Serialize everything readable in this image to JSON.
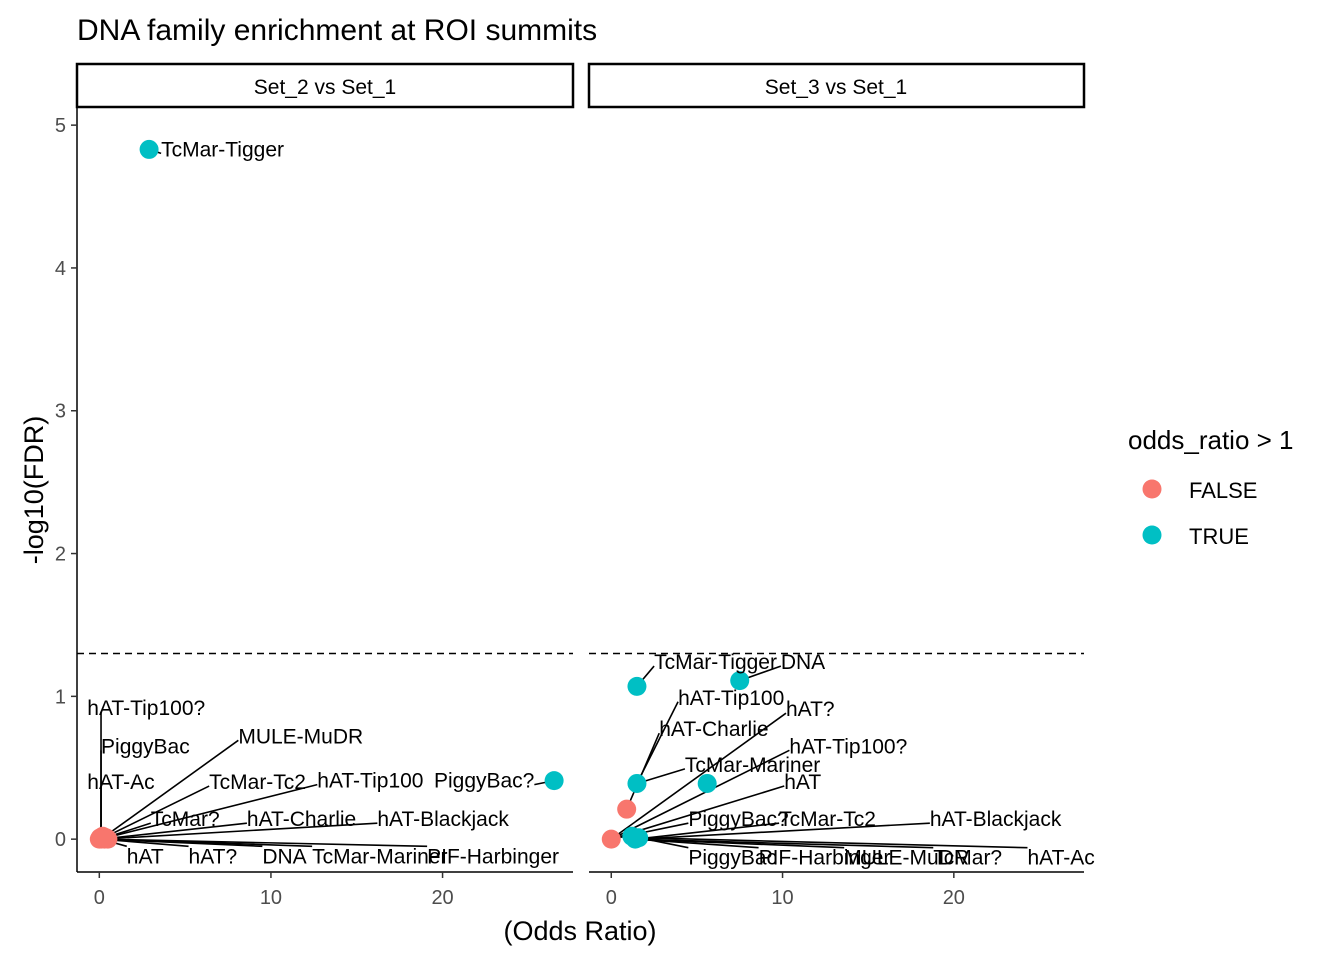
{
  "chart_data": {
    "type": "scatter",
    "title": "DNA family enrichment at ROI summits",
    "xlabel": "(Odds Ratio)",
    "ylabel": "-log10(FDR)",
    "xlim": [
      -1.3,
      27.6
    ],
    "ylim": [
      -0.23,
      5.12
    ],
    "x_ticks": [
      "0",
      "10",
      "20"
    ],
    "y_ticks": [
      "0",
      "1",
      "2",
      "3",
      "4",
      "5"
    ],
    "threshold_y": 1.3,
    "legend": {
      "title": "odds_ratio > 1",
      "position": "right",
      "entries": [
        {
          "label": "FALSE",
          "color": "#F8766D"
        },
        {
          "label": "TRUE",
          "color": "#00BFC4"
        }
      ]
    },
    "panels": [
      {
        "title": "Set_2 vs Set_1",
        "points": [
          {
            "x": 2.9,
            "y": 4.83,
            "group": "TRUE"
          },
          {
            "x": 26.5,
            "y": 0.41,
            "group": "TRUE"
          },
          {
            "x": 0.05,
            "y": 0.01,
            "group": "FALSE"
          },
          {
            "x": 0.1,
            "y": 0.0,
            "group": "FALSE"
          },
          {
            "x": 0.2,
            "y": 0.02,
            "group": "FALSE"
          },
          {
            "x": 0.3,
            "y": 0.0,
            "group": "FALSE"
          },
          {
            "x": 0.4,
            "y": 0.01,
            "group": "FALSE"
          },
          {
            "x": 0.0,
            "y": 0.0,
            "group": "FALSE"
          },
          {
            "x": 0.15,
            "y": 0.005,
            "group": "FALSE"
          },
          {
            "x": 0.25,
            "y": 0.015,
            "group": "FALSE"
          },
          {
            "x": 0.35,
            "y": 0.005,
            "group": "FALSE"
          },
          {
            "x": 0.5,
            "y": 0.0,
            "group": "FALSE"
          }
        ],
        "labels": [
          {
            "text": "TcMar-Tigger",
            "lx": 3.6,
            "ly": 4.83,
            "px": 2.9,
            "py": 4.83
          },
          {
            "text": "PiggyBac?",
            "lx": 19.5,
            "ly": 0.41,
            "px": 26.5,
            "py": 0.41
          },
          {
            "text": "hAT-Tip100?",
            "lx": -0.7,
            "ly": 0.92,
            "px": 0.1,
            "py": 0.0
          },
          {
            "text": "PiggyBac",
            "lx": 0.1,
            "ly": 0.65,
            "px": 0.1,
            "py": 0.0
          },
          {
            "text": "MULE-MuDR",
            "lx": 8.1,
            "ly": 0.72,
            "px": 0.1,
            "py": 0.0
          },
          {
            "text": "hAT-Ac",
            "lx": -0.7,
            "ly": 0.4,
            "px": 0.1,
            "py": 0.0
          },
          {
            "text": "TcMar-Tc2",
            "lx": 6.4,
            "ly": 0.4,
            "px": 0.1,
            "py": 0.0
          },
          {
            "text": "hAT-Tip100",
            "lx": 12.7,
            "ly": 0.41,
            "px": 0.1,
            "py": 0.0
          },
          {
            "text": "TcMar?",
            "lx": 3.0,
            "ly": 0.14,
            "px": 0.1,
            "py": 0.0
          },
          {
            "text": "hAT-Charlie",
            "lx": 8.6,
            "ly": 0.14,
            "px": 0.1,
            "py": 0.0
          },
          {
            "text": "hAT-Blackjack",
            "lx": 16.2,
            "ly": 0.14,
            "px": 0.1,
            "py": 0.0
          },
          {
            "text": "hAT",
            "lx": 1.6,
            "ly": -0.12,
            "px": 0.1,
            "py": 0.0
          },
          {
            "text": "hAT?",
            "lx": 5.2,
            "ly": -0.12,
            "px": 0.1,
            "py": 0.0
          },
          {
            "text": "DNA",
            "lx": 9.5,
            "ly": -0.12,
            "px": 0.1,
            "py": 0.0
          },
          {
            "text": "TcMar-Mariner",
            "lx": 12.4,
            "ly": -0.12,
            "px": 0.1,
            "py": 0.0
          },
          {
            "text": "PIF-Harbinger",
            "lx": 19.1,
            "ly": -0.12,
            "px": 0.1,
            "py": 0.0
          }
        ]
      },
      {
        "title": "Set_3 vs Set_1",
        "points": [
          {
            "x": 7.5,
            "y": 1.11,
            "group": "TRUE"
          },
          {
            "x": 1.5,
            "y": 1.07,
            "group": "TRUE"
          },
          {
            "x": 1.5,
            "y": 0.39,
            "group": "TRUE"
          },
          {
            "x": 5.6,
            "y": 0.39,
            "group": "TRUE"
          },
          {
            "x": 1.2,
            "y": 0.02,
            "group": "TRUE"
          },
          {
            "x": 1.4,
            "y": 0.0,
            "group": "TRUE"
          },
          {
            "x": 1.6,
            "y": 0.01,
            "group": "TRUE"
          },
          {
            "x": 0.9,
            "y": 0.21,
            "group": "FALSE"
          },
          {
            "x": 0.0,
            "y": 0.0,
            "group": "FALSE"
          }
        ],
        "labels": [
          {
            "text": "TcMar-Tigger",
            "lx": 2.5,
            "ly": 1.24,
            "px": 1.5,
            "py": 1.07
          },
          {
            "text": "DNA",
            "lx": 9.9,
            "ly": 1.24,
            "px": 7.5,
            "py": 1.11
          },
          {
            "text": "hAT-Tip100",
            "lx": 3.9,
            "ly": 0.99,
            "px": 1.5,
            "py": 0.39
          },
          {
            "text": "hAT?",
            "lx": 10.2,
            "ly": 0.91,
            "px": 0.0,
            "py": 0.0
          },
          {
            "text": "hAT-Charlie",
            "lx": 2.8,
            "ly": 0.77,
            "px": 0.9,
            "py": 0.21
          },
          {
            "text": "hAT-Tip100?",
            "lx": 10.4,
            "ly": 0.65,
            "px": 0.0,
            "py": 0.0
          },
          {
            "text": "TcMar-Mariner",
            "lx": 4.3,
            "ly": 0.52,
            "px": 1.5,
            "py": 0.39
          },
          {
            "text": "hAT",
            "lx": 10.1,
            "ly": 0.4,
            "px": 0.0,
            "py": 0.0
          },
          {
            "text": "PiggyBac?",
            "lx": 4.5,
            "ly": 0.14,
            "px": 0.0,
            "py": 0.0
          },
          {
            "text": "TcMar-Tc2",
            "lx": 9.8,
            "ly": 0.14,
            "px": 1.4,
            "py": 0.0
          },
          {
            "text": "hAT-Blackjack",
            "lx": 18.6,
            "ly": 0.14,
            "px": 1.4,
            "py": 0.0
          },
          {
            "text": "PiggyBac",
            "lx": 4.5,
            "ly": -0.13,
            "px": 1.2,
            "py": 0.02
          },
          {
            "text": "PIF-Harbinger",
            "lx": 8.6,
            "ly": -0.13,
            "px": 1.4,
            "py": 0.0
          },
          {
            "text": "MULE-MuDR",
            "lx": 13.6,
            "ly": -0.13,
            "px": 1.4,
            "py": 0.0
          },
          {
            "text": "TcMar?",
            "lx": 18.8,
            "ly": -0.13,
            "px": 1.4,
            "py": 0.0
          },
          {
            "text": "hAT-Ac",
            "lx": 24.3,
            "ly": -0.13,
            "px": 1.6,
            "py": 0.01
          }
        ]
      }
    ]
  }
}
